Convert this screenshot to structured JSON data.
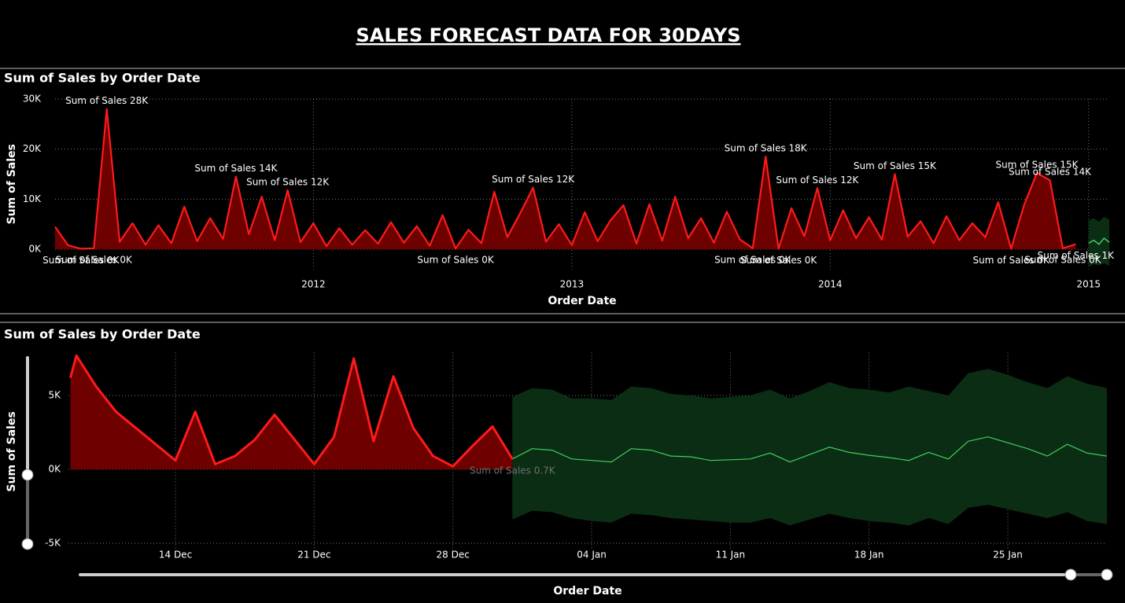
{
  "title": "SALES FORECAST DATA FOR 30DAYS",
  "chart_data": [
    {
      "type": "line",
      "title": "Sum of Sales by Order Date",
      "x_label": "Order Date",
      "y_label": "Sum of Sales",
      "grid": true,
      "xlim": [
        2011.0,
        2015.08
      ],
      "xticks": [
        2012,
        2013,
        2014,
        2015
      ],
      "ylim": [
        -4000,
        30000
      ],
      "yticks": [
        {
          "value": 0,
          "label": "0K"
        },
        {
          "value": 10000,
          "label": "10K"
        },
        {
          "value": 20000,
          "label": "20K"
        },
        {
          "value": 30000,
          "label": "30K"
        }
      ],
      "x": [
        2011.0,
        2011.05,
        2011.1,
        2011.15,
        2011.2,
        2011.25,
        2011.3,
        2011.35,
        2011.4,
        2011.45,
        2011.5,
        2011.55,
        2011.6,
        2011.65,
        2011.7,
        2011.75,
        2011.8,
        2011.85,
        2011.9,
        2011.95,
        2012.0,
        2012.05,
        2012.1,
        2012.15,
        2012.2,
        2012.25,
        2012.3,
        2012.35,
        2012.4,
        2012.45,
        2012.5,
        2012.55,
        2012.6,
        2012.65,
        2012.7,
        2012.75,
        2012.8,
        2012.85,
        2012.9,
        2012.95,
        2013.0,
        2013.05,
        2013.1,
        2013.15,
        2013.2,
        2013.25,
        2013.3,
        2013.35,
        2013.4,
        2013.45,
        2013.5,
        2013.55,
        2013.6,
        2013.65,
        2013.7,
        2013.75,
        2013.8,
        2013.85,
        2013.9,
        2013.95,
        2014.0,
        2014.05,
        2014.1,
        2014.15,
        2014.2,
        2014.25,
        2014.3,
        2014.35,
        2014.4,
        2014.45,
        2014.5,
        2014.55,
        2014.6,
        2014.65,
        2014.7,
        2014.75,
        2014.8,
        2014.85,
        2014.9,
        2014.95
      ],
      "series": [
        {
          "color": "#ff1a1a",
          "area_color": "#6e0000",
          "values": [
            4500,
            800,
            100,
            200,
            28000,
            1500,
            5200,
            900,
            4800,
            1200,
            8500,
            1600,
            6200,
            2100,
            14500,
            3000,
            10500,
            1800,
            11800,
            1400,
            5200,
            600,
            4200,
            900,
            3800,
            1100,
            5400,
            1300,
            4600,
            700,
            6800,
            150,
            3900,
            1200,
            11500,
            2400,
            7200,
            12300,
            1500,
            5000,
            800,
            7400,
            1600,
            5800,
            8800,
            1100,
            9000,
            1700,
            10500,
            2200,
            6200,
            1300,
            7500,
            2000,
            200,
            18500,
            100,
            8200,
            2600,
            12200,
            1800,
            7800,
            2200,
            6400,
            1900,
            15000,
            2500,
            5600,
            1200,
            6600,
            1800,
            5200,
            2400,
            9400,
            100,
            8800,
            15200,
            13800,
            200,
            1000
          ],
          "value_labels": [
            null,
            null,
            "Sum of Sales 0K",
            "Sum of Sales 0K",
            "Sum of Sales 28K",
            null,
            null,
            null,
            null,
            null,
            null,
            null,
            null,
            null,
            "Sum of Sales 14K",
            null,
            null,
            null,
            "Sum of Sales 12K",
            null,
            null,
            null,
            null,
            null,
            null,
            null,
            null,
            null,
            null,
            null,
            null,
            "Sum of Sales 0K",
            null,
            null,
            null,
            null,
            null,
            "Sum of Sales 12K",
            null,
            null,
            null,
            null,
            null,
            null,
            null,
            null,
            null,
            null,
            null,
            null,
            null,
            null,
            null,
            null,
            "Sum of Sales 0K",
            "Sum of Sales 18K",
            "Sum of Sales 0K",
            null,
            null,
            "Sum of Sales 12K",
            null,
            null,
            null,
            null,
            null,
            "Sum of Sales 15K",
            null,
            null,
            null,
            null,
            null,
            null,
            null,
            null,
            "Sum of Sales 0K",
            null,
            "Sum of Sales 15K",
            "Sum of Sales 14K",
            "Sum of Sales 0K",
            "Sum of Sales 1K"
          ],
          "label_color": "#ffffff"
        }
      ],
      "forecast": {
        "color": "#3ecf5a",
        "band_color": "#0b2d14",
        "x": [
          2015.0,
          2015.02,
          2015.04,
          2015.06,
          2015.08
        ],
        "values": [
          1200,
          1800,
          1000,
          2200,
          1400
        ],
        "lower": [
          -3500,
          -3000,
          -3200,
          -2800,
          -3300
        ],
        "upper": [
          5800,
          6200,
          5500,
          6500,
          5900
        ]
      }
    },
    {
      "type": "line",
      "title": "Sum of Sales by Order Date",
      "x_label": "Order Date",
      "y_label": "Sum of Sales",
      "grid": true,
      "xlim": [
        8.6,
        61.0
      ],
      "xticks": [
        {
          "value": 14,
          "label": "14 Dec"
        },
        {
          "value": 21,
          "label": "21 Dec"
        },
        {
          "value": 28,
          "label": "28 Dec"
        },
        {
          "value": 35,
          "label": "04 Jan"
        },
        {
          "value": 42,
          "label": "11 Jan"
        },
        {
          "value": 49,
          "label": "18 Jan"
        },
        {
          "value": 56,
          "label": "25 Jan"
        }
      ],
      "ylim": [
        -5500,
        7900
      ],
      "yticks": [
        {
          "value": -5000,
          "label": "-5K"
        },
        {
          "value": 0,
          "label": "0K"
        },
        {
          "value": 5000,
          "label": "5K"
        }
      ],
      "x": [
        8.7,
        9,
        10,
        11,
        14,
        15,
        16,
        17,
        18,
        19,
        21,
        22,
        23,
        24,
        25,
        26,
        27,
        28,
        29,
        30,
        31
      ],
      "series": [
        {
          "color": "#ff1a1a",
          "area_color": "#6e0000",
          "values": [
            6200,
            7700,
            5600,
            3900,
            600,
            3900,
            350,
            900,
            2000,
            3700,
            350,
            2200,
            7500,
            1900,
            6300,
            2800,
            900,
            200,
            1600,
            2900,
            700
          ],
          "value_labels": [
            null,
            null,
            null,
            null,
            null,
            null,
            null,
            null,
            null,
            null,
            null,
            null,
            null,
            null,
            null,
            null,
            null,
            null,
            null,
            null,
            "Sum of Sales 0.7K"
          ],
          "label_color": "#6f6f6f"
        }
      ],
      "forecast": {
        "color": "#3ecf5a",
        "band_color": "#0b2d14",
        "x": [
          31,
          32,
          33,
          34,
          35,
          36,
          37,
          38,
          39,
          40,
          41,
          42,
          43,
          44,
          45,
          46,
          47,
          48,
          49,
          50,
          51,
          52,
          53,
          54,
          55,
          56,
          57,
          58,
          59,
          60,
          61
        ],
        "values": [
          700,
          1400,
          1300,
          700,
          600,
          500,
          1400,
          1300,
          900,
          850,
          600,
          650,
          700,
          1100,
          500,
          1000,
          1500,
          1150,
          950,
          800,
          600,
          1150,
          700,
          1900,
          2200,
          1800,
          1400,
          900,
          1700,
          1100,
          900
        ],
        "lower": [
          -3400,
          -2800,
          -2900,
          -3300,
          -3500,
          -3600,
          -3000,
          -3100,
          -3300,
          -3400,
          -3500,
          -3600,
          -3600,
          -3300,
          -3800,
          -3400,
          -3000,
          -3300,
          -3500,
          -3600,
          -3800,
          -3300,
          -3700,
          -2600,
          -2400,
          -2700,
          -3000,
          -3300,
          -2900,
          -3500,
          -3700
        ],
        "upper": [
          4900,
          5500,
          5400,
          4800,
          4800,
          4700,
          5600,
          5500,
          5100,
          5000,
          4800,
          4900,
          5000,
          5400,
          4800,
          5300,
          5900,
          5500,
          5400,
          5200,
          5600,
          5300,
          5000,
          6500,
          6800,
          6400,
          5900,
          5500,
          6300,
          5800,
          5500
        ]
      }
    }
  ]
}
